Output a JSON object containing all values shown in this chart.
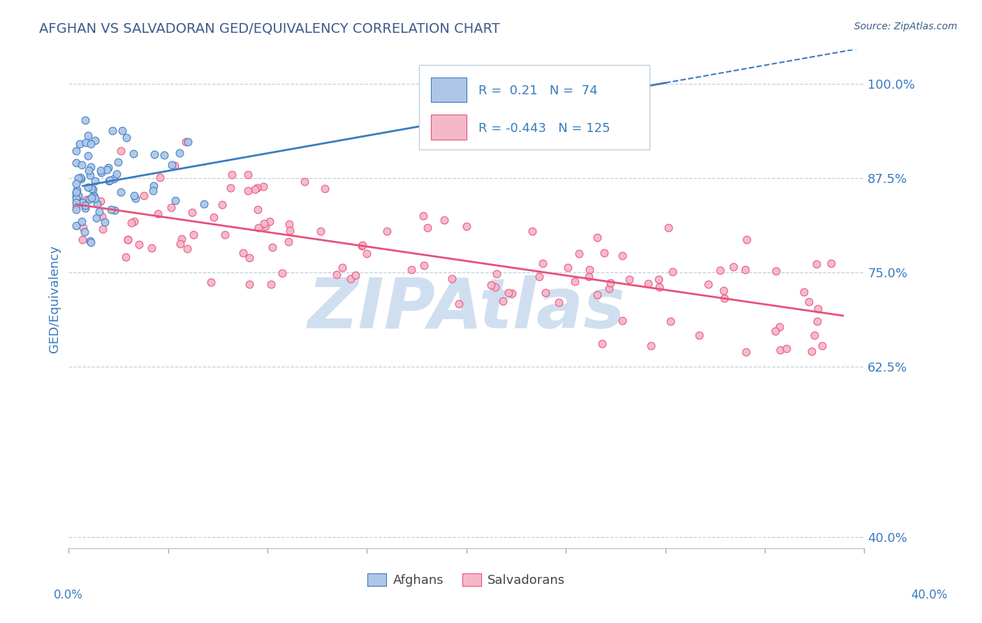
{
  "title": "AFGHAN VS SALVADORAN GED/EQUIVALENCY CORRELATION CHART",
  "source": "Source: ZipAtlas.com",
  "ylabel": "GED/Equivalency",
  "xlim": [
    0.0,
    0.56
  ],
  "ylim": [
    0.385,
    1.045
  ],
  "yticks": [
    0.4,
    0.625,
    0.75,
    0.875,
    1.0
  ],
  "ytick_labels": [
    "40.0%",
    "62.5%",
    "75.0%",
    "87.5%",
    "100.0%"
  ],
  "xtick_left_label": "0.0%",
  "xtick_right_label": "40.0%",
  "afghan_R": 0.21,
  "afghan_N": 74,
  "salvadoran_R": -0.443,
  "salvadoran_N": 125,
  "afghan_scatter_color": "#adc6e8",
  "salvadoran_scatter_color": "#f5b8ca",
  "afghan_line_color": "#3a7abf",
  "salvadoran_line_color": "#e8507a",
  "legend_label_afghan": "Afghans",
  "legend_label_salvadoran": "Salvadorans",
  "title_color": "#3d5a8a",
  "source_color": "#3d5a8a",
  "axis_tick_color": "#3a7abf",
  "ylabel_color": "#3a7abf",
  "grid_color": "#c0cfe0",
  "background_color": "#ffffff",
  "watermark_text": "ZIPAtlas",
  "watermark_color": "#d0dff0",
  "legend_box_color": "#f0f4f8",
  "legend_text_color": "#3a7abf",
  "legend_border_color": "#c0cfe0",
  "scatter_size": 60,
  "scatter_linewidth": 0.8,
  "trend_linewidth": 2.0,
  "af_trend_slope": 0.32,
  "af_trend_intercept": 0.871,
  "sal_trend_slope": -0.28,
  "sal_trend_intercept": 0.835
}
